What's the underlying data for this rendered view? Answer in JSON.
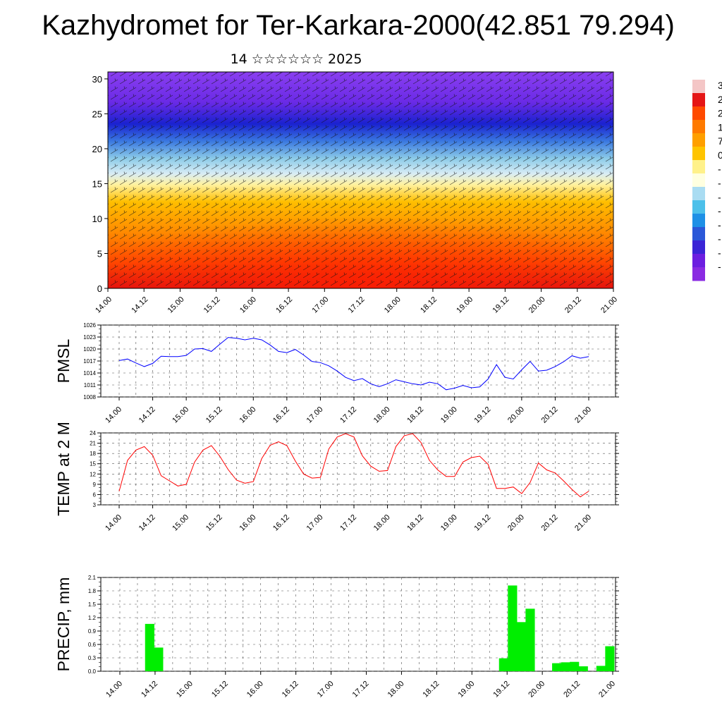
{
  "title": "Kazhydromet for Ter-Karkara-2000(42.851 79.294)",
  "subtitle": "14 ☆☆☆☆☆☆ 2025",
  "colors": {
    "pmsl_line": "#0000ff",
    "temp_line": "#ff0000",
    "precip_bar": "#00ee00"
  },
  "chart_data": [
    {
      "type": "heatmap",
      "name": "cross-section",
      "x_ticks": [
        "14.00",
        "14.12",
        "15.00",
        "15.12",
        "16.00",
        "16.12",
        "17.00",
        "17.12",
        "18.00",
        "18.12",
        "19.00",
        "19.12",
        "20.00",
        "20.12",
        "21.00"
      ],
      "y_ticks": [
        "0",
        "5",
        "10",
        "15",
        "20",
        "25",
        "30"
      ],
      "ylim": [
        0,
        31
      ],
      "colorbar_labels": [
        "3",
        "2",
        "2",
        "1",
        "7",
        "0",
        "-",
        "-",
        "-",
        "-",
        "-",
        "-",
        "-",
        "-"
      ],
      "colorbar": [
        "#f4c6c6",
        "#e51515",
        "#ff4a00",
        "#ff7a00",
        "#ff9f00",
        "#ffc400",
        "#fff18a",
        "#ffffe0",
        "#a9dcf2",
        "#4cc0ea",
        "#1e90e6",
        "#2b58d8",
        "#3a24d6",
        "#6c1ee0",
        "#8a2be2"
      ]
    },
    {
      "type": "line",
      "name": "PMSL",
      "ylabel": "PMSL",
      "x_ticks": [
        "14.00",
        "14.12",
        "15.00",
        "15.12",
        "16.00",
        "16.12",
        "17.00",
        "17.12",
        "18.00",
        "18.12",
        "19.00",
        "19.12",
        "20.00",
        "20.12",
        "21.00"
      ],
      "y_ticks": [
        "1008",
        "1011",
        "1014",
        "1017",
        "1020",
        "1023",
        "1026"
      ],
      "ylim": [
        1008,
        1026
      ],
      "grid": true,
      "values": [
        1017.1,
        1017.5,
        1016.5,
        1015.6,
        1016.4,
        1018.2,
        1018.1,
        1018.1,
        1018.4,
        1020,
        1020.1,
        1019.4,
        1021.2,
        1022.9,
        1022.7,
        1022.3,
        1022.7,
        1022.3,
        1021,
        1019.4,
        1019.1,
        1019.9,
        1018.5,
        1016.9,
        1016.6,
        1015.8,
        1014.5,
        1012.9,
        1012.1,
        1012.6,
        1011.3,
        1010.6,
        1011.3,
        1012.3,
        1011.8,
        1011.3,
        1011,
        1011.7,
        1011.3,
        1009.8,
        1010.2,
        1010.9,
        1010.3,
        1010.5,
        1012.5,
        1016.1,
        1012.9,
        1012.5,
        1014.8,
        1016.9,
        1014.5,
        1014.7,
        1015.6,
        1016.8,
        1018.3,
        1017.7,
        1018.1
      ]
    },
    {
      "type": "line",
      "name": "TEMP",
      "ylabel": "TEMP at 2 M",
      "x_ticks": [
        "14.00",
        "14.12",
        "15.00",
        "15.12",
        "16.00",
        "16.12",
        "17.00",
        "17.12",
        "18.00",
        "18.12",
        "19.00",
        "19.12",
        "20.00",
        "20.12",
        "21.00"
      ],
      "y_ticks": [
        "3",
        "6",
        "9",
        "12",
        "15",
        "18",
        "21",
        "24"
      ],
      "ylim": [
        3,
        24
      ],
      "grid": true,
      "values": [
        7,
        16,
        19,
        20,
        17.5,
        11.5,
        10,
        8.5,
        9,
        15.5,
        19,
        20.3,
        17.2,
        13.3,
        10.2,
        9.3,
        9.8,
        16.5,
        20.4,
        21.4,
        20.3,
        15.8,
        12,
        10.8,
        11,
        19.3,
        22.8,
        23.8,
        22.8,
        17.3,
        14.3,
        12.8,
        13,
        20,
        23.2,
        23.8,
        21.2,
        16,
        13.2,
        11.3,
        11.3,
        15.5,
        16.8,
        17.2,
        14.8,
        7.8,
        7.8,
        8.2,
        6.3,
        9.5,
        15.2,
        13.2,
        12.3,
        10,
        7.5,
        5.3,
        7
      ]
    },
    {
      "type": "bar",
      "name": "PRECIP",
      "ylabel": "PRECIP, mm",
      "x_ticks": [
        "14.00",
        "14.12",
        "15.00",
        "15.12",
        "16.00",
        "16.12",
        "17.00",
        "17.12",
        "18.00",
        "18.12",
        "19.00",
        "19.12",
        "20.00",
        "20.12",
        "21.00"
      ],
      "y_ticks": [
        "0.0",
        "0.3",
        "0.6",
        "0.9",
        "1.2",
        "1.5",
        "1.8",
        "2.1"
      ],
      "ylim": [
        0,
        2.1
      ],
      "grid": true,
      "values": [
        0,
        0,
        0,
        0,
        0,
        1.06,
        0.53,
        0,
        0,
        0,
        0,
        0,
        0,
        0,
        0,
        0,
        0,
        0,
        0,
        0,
        0,
        0,
        0,
        0,
        0,
        0,
        0,
        0,
        0,
        0,
        0,
        0,
        0,
        0,
        0,
        0,
        0,
        0,
        0,
        0,
        0,
        0,
        0,
        0,
        0,
        0.29,
        1.92,
        1.1,
        1.4,
        0,
        0,
        0.18,
        0.2,
        0.21,
        0.11,
        0,
        0.12,
        0.56
      ]
    }
  ]
}
